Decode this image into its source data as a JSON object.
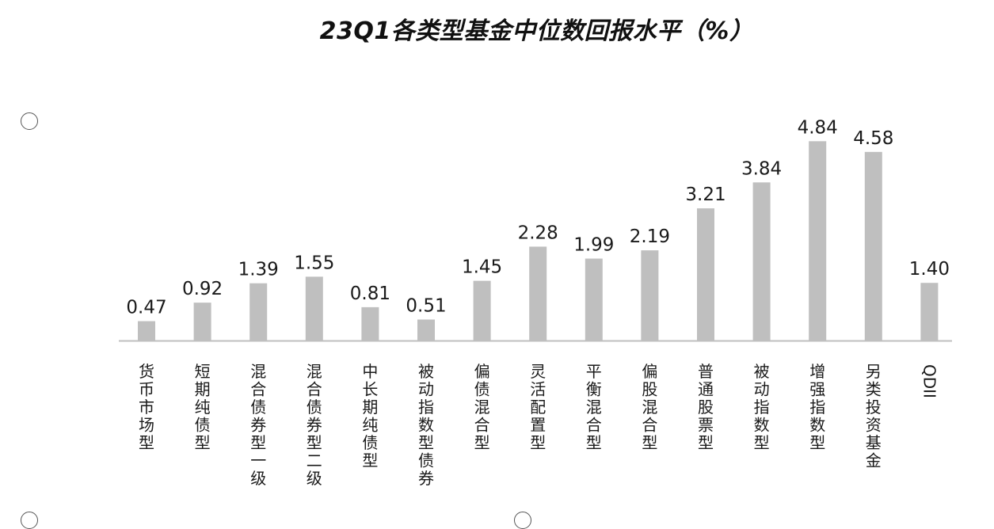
{
  "chart_data": {
    "type": "bar",
    "title": "23Q1各类型基金中位数回报水平（%）",
    "xlabel": "",
    "ylabel": "",
    "categories": [
      "货币市场型",
      "短期纯债型",
      "混合债券型一级",
      "混合债券型二级",
      "中长期纯债型",
      "被动指数型债券",
      "偏债混合型",
      "灵活配置型",
      "平衡混合型",
      "偏股混合型",
      "普通股票型",
      "被动指数型",
      "增强指数型",
      "另类投资基金",
      "QDII"
    ],
    "values": [
      0.47,
      0.92,
      1.39,
      1.55,
      0.81,
      0.51,
      1.45,
      2.28,
      1.99,
      2.19,
      3.21,
      3.84,
      4.84,
      4.58,
      1.4
    ],
    "value_labels": [
      "0.47",
      "0.92",
      "1.39",
      "1.55",
      "0.81",
      "0.51",
      "1.45",
      "2.28",
      "1.99",
      "2.19",
      "3.21",
      "3.84",
      "4.84",
      "4.58",
      "1.40"
    ],
    "ylim": [
      0,
      5
    ],
    "grid": false,
    "legend": "none",
    "bar_color": "#bfbfbf",
    "axis_color": "#bfbfbf"
  }
}
